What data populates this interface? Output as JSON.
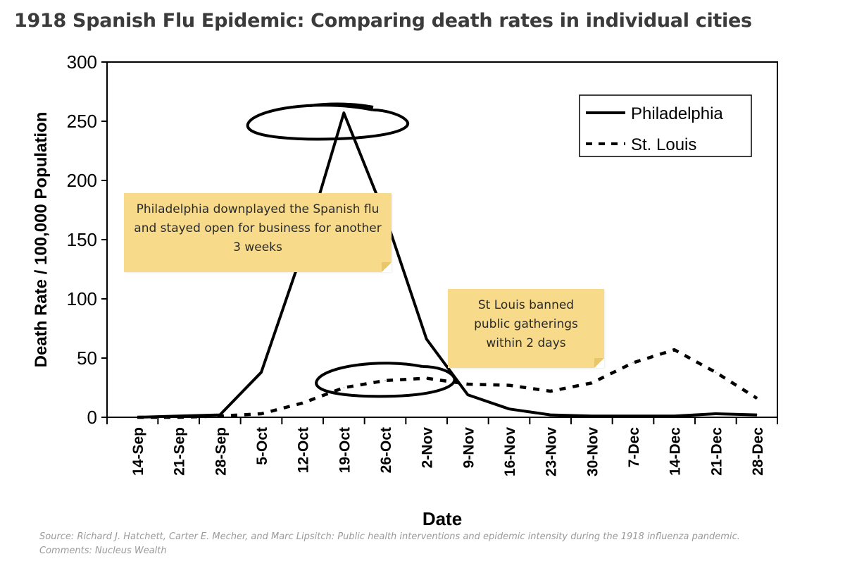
{
  "header": {
    "title": "1918 Spanish Flu Epidemic: Comparing death rates in individual cities"
  },
  "annotations": {
    "philadelphia_note": "Philadelphia downplayed the Spanish flu and stayed open for business for another 3 weeks",
    "stlouis_note": "St Louis banned public gatherings within 2 days"
  },
  "footer": {
    "source": "Source: Richard J. Hatchett, Carter E. Mecher, and Marc Lipsitch: Public health interventions and epidemic intensity during the 1918 influenza pandemic.",
    "comments": "Comments: Nucleus Wealth"
  },
  "colors": {
    "note_background": "#f7db8a",
    "line": "#000000",
    "title": "#3b3b3b",
    "source_text": "#9a9a9a"
  },
  "chart_data": {
    "type": "line",
    "xlabel": "Date",
    "ylabel": "Death Rate / 100,000 Population",
    "ylim": [
      0,
      300
    ],
    "yticks": [
      0,
      50,
      100,
      150,
      200,
      250,
      300
    ],
    "categories": [
      "14-Sep",
      "21-Sep",
      "28-Sep",
      "5-Oct",
      "12-Oct",
      "19-Oct",
      "26-Oct",
      "2-Nov",
      "9-Nov",
      "16-Nov",
      "23-Nov",
      "30-Nov",
      "7-Dec",
      "14-Dec",
      "21-Dec",
      "28-Dec"
    ],
    "legend_position": "top-right",
    "series": [
      {
        "name": "Philadelphia",
        "style": "solid",
        "values": [
          0,
          1,
          2,
          38,
          140,
          257,
          170,
          66,
          19,
          7,
          2,
          1,
          1,
          1,
          3,
          2
        ]
      },
      {
        "name": "St. Louis",
        "style": "dashed",
        "values": [
          0,
          0,
          1,
          3,
          12,
          25,
          31,
          33,
          28,
          27,
          22,
          29,
          46,
          57,
          38,
          16
        ]
      }
    ]
  }
}
